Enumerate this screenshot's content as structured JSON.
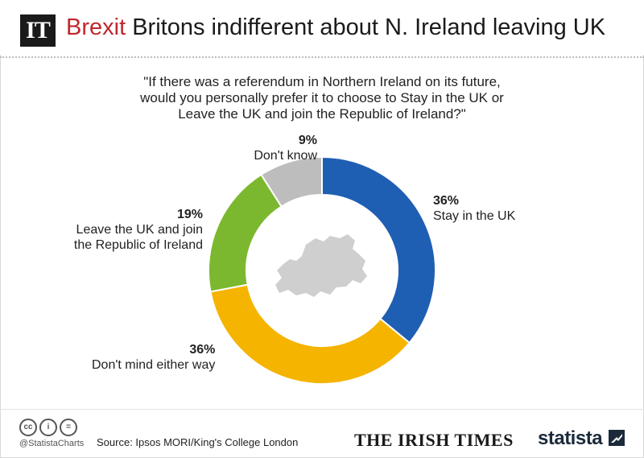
{
  "header": {
    "logo_text": "IT",
    "kicker": "Brexit",
    "title": "Britons indifferent about N. Ireland leaving UK",
    "kicker_color": "#c0272d"
  },
  "chart_data": {
    "type": "pie",
    "style": "donut",
    "question_lines": [
      "\"If there was a referendum in Northern Ireland on its future,",
      "would you personally prefer it to choose to Stay in the UK or",
      "Leave the UK and join the Republic of Ireland?\""
    ],
    "slices": [
      {
        "label_lines": [
          "Stay in the UK"
        ],
        "value": 36,
        "value_label": "36%",
        "color": "#1f5fb3"
      },
      {
        "label_lines": [
          "Don't mind either way"
        ],
        "value": 36,
        "value_label": "36%",
        "color": "#f5b400"
      },
      {
        "label_lines": [
          "Leave the UK and join",
          "the Republic of Ireland"
        ],
        "value": 19,
        "value_label": "19%",
        "color": "#7cb82f"
      },
      {
        "label_lines": [
          "Don't know"
        ],
        "value": 9,
        "value_label": "9%",
        "color": "#bdbdbd"
      }
    ],
    "center_graphic": "northern-ireland-map-silhouette"
  },
  "footer": {
    "license_icons": [
      "cc",
      "by",
      "nd"
    ],
    "handle": "@StatistaCharts",
    "source": "Source: Ipsos MORI/King's College London",
    "partner_logo": "THE IRISH TIMES",
    "brand": "statista"
  }
}
